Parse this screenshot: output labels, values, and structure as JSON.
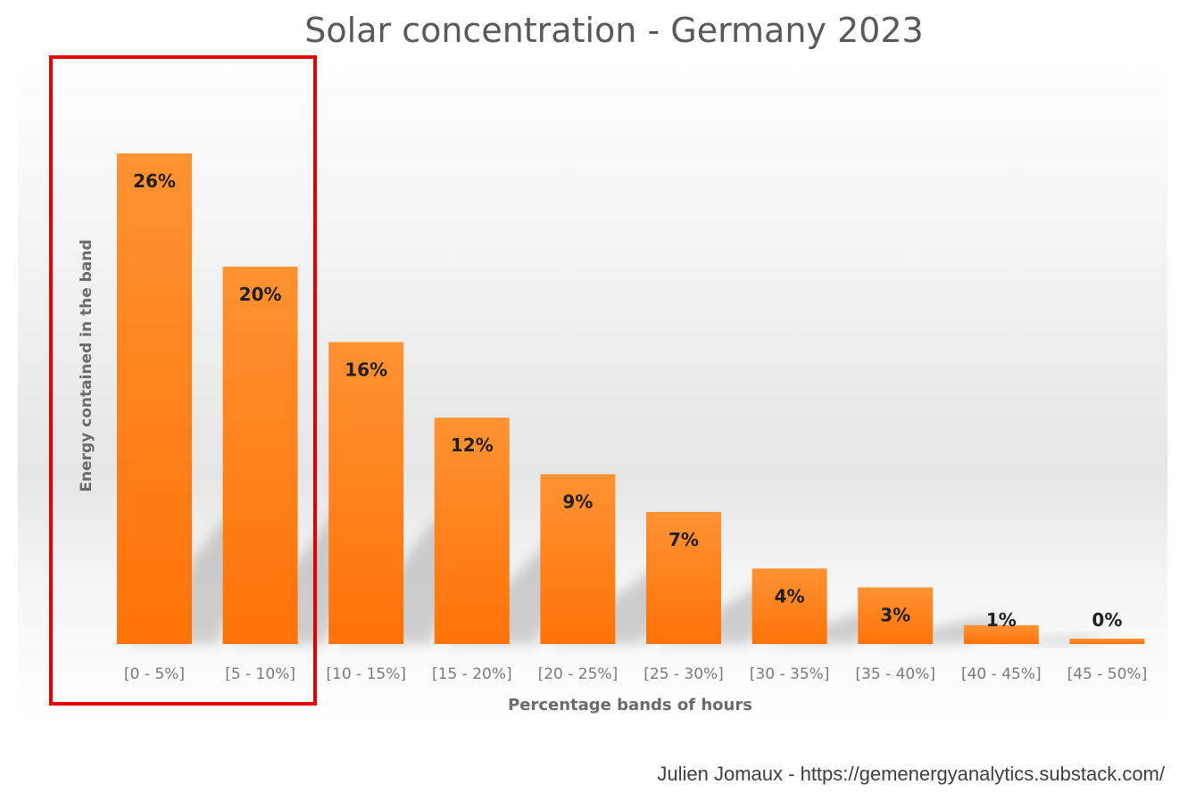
{
  "chart_data": {
    "type": "bar",
    "title": "Solar concentration - Germany 2023",
    "xlabel": "Percentage bands of hours",
    "ylabel": "Energy contained in the band",
    "categories": [
      "[0 - 5%]",
      "[5 - 10%]",
      "[10 - 15%]",
      "[15 - 20%]",
      "[20 - 25%]",
      "[25 - 30%]",
      "[30 - 35%]",
      "[35 - 40%]",
      "[40 - 45%]",
      "[45 - 50%]"
    ],
    "values": [
      26,
      20,
      16,
      12,
      9,
      7,
      4,
      3,
      1,
      0
    ],
    "value_labels": [
      "26%",
      "20%",
      "16%",
      "12%",
      "9%",
      "7%",
      "4%",
      "3%",
      "1%",
      "0%"
    ],
    "ylim": [
      0,
      28
    ],
    "grid": false,
    "legend": "none",
    "highlighted_categories": [
      "[0 - 5%]",
      "[5 - 10%]"
    ],
    "bar_color": "#ff8a1f",
    "highlight_color": "#e60000"
  },
  "credit": "Julien Jomaux - https://gemenergyanalytics.substack.com/"
}
